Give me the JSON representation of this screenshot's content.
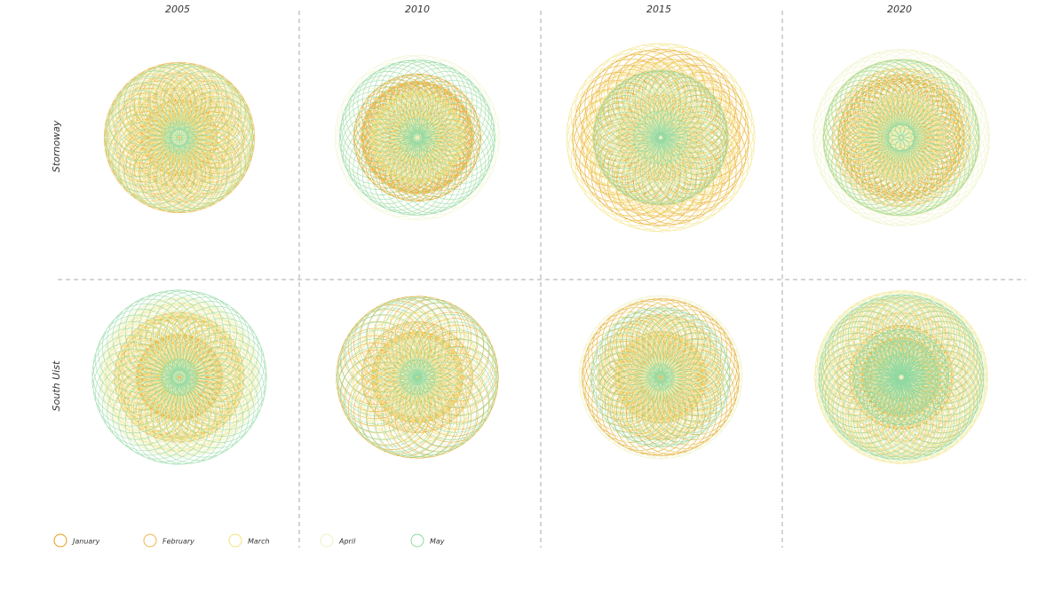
{
  "columns": [
    "2005",
    "2010",
    "2015",
    "2020"
  ],
  "rows": [
    "Stornoway",
    "South Uist"
  ],
  "legend": [
    {
      "label": "January",
      "color": "#e49c12"
    },
    {
      "label": "February",
      "color": "#eeb648"
    },
    {
      "label": "March",
      "color": "#f2e27a"
    },
    {
      "label": "April",
      "color": "#eef2c4"
    },
    {
      "label": "May",
      "color": "#8fd8a2"
    }
  ]
}
